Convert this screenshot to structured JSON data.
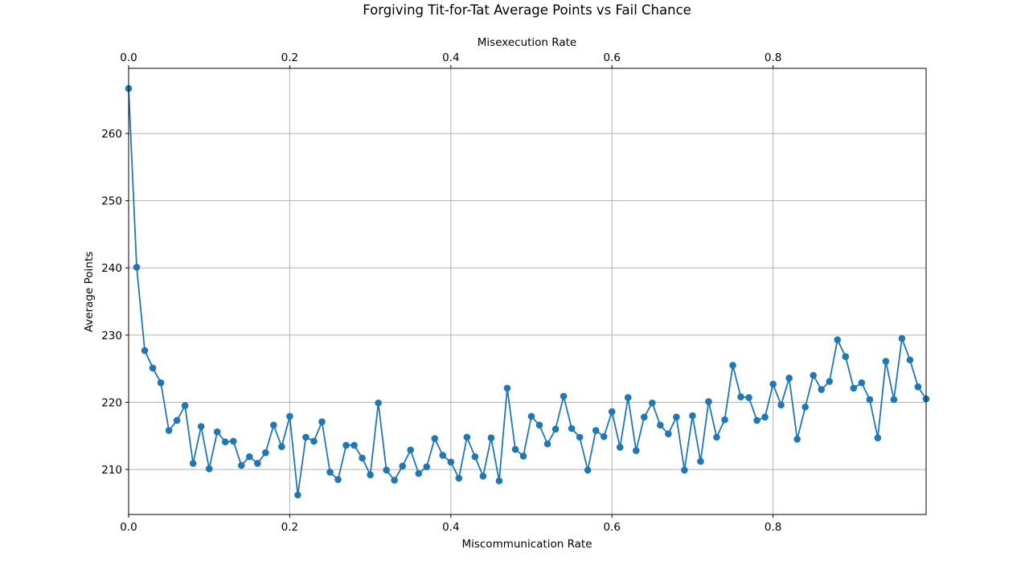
{
  "chart_data": {
    "type": "line",
    "title": "Forgiving Tit-for-Tat Average Points vs Fail Chance",
    "xlabel": "Miscommunication Rate",
    "xlabel_top": "Misexecution Rate",
    "ylabel": "Average Points",
    "xlim": [
      0,
      0.99
    ],
    "ylim": [
      203.3,
      269.7
    ],
    "xticks": [
      "0.0",
      "0.2",
      "0.4",
      "0.6",
      "0.8"
    ],
    "yticks": [
      "210",
      "220",
      "230",
      "240",
      "250",
      "260"
    ],
    "grid": true,
    "markers": true,
    "color": "#1f77b4",
    "series": [
      {
        "x": [
          0.0,
          0.01,
          0.02,
          0.03,
          0.04,
          0.05,
          0.06,
          0.07,
          0.08,
          0.09,
          0.1,
          0.11,
          0.12,
          0.13,
          0.14,
          0.15,
          0.16,
          0.17,
          0.18,
          0.19,
          0.2,
          0.21,
          0.22,
          0.23,
          0.24,
          0.25,
          0.26,
          0.27,
          0.28,
          0.29,
          0.3,
          0.31,
          0.32,
          0.33,
          0.34,
          0.35,
          0.36,
          0.37,
          0.38,
          0.39,
          0.4,
          0.41,
          0.42,
          0.43,
          0.44,
          0.45,
          0.46,
          0.47,
          0.48,
          0.49,
          0.5,
          0.51,
          0.52,
          0.53,
          0.54,
          0.55,
          0.56,
          0.57,
          0.58,
          0.59,
          0.6,
          0.61,
          0.62,
          0.63,
          0.64,
          0.65,
          0.66,
          0.67,
          0.68,
          0.69,
          0.7,
          0.71,
          0.72,
          0.73,
          0.74,
          0.75,
          0.76,
          0.77,
          0.78,
          0.79,
          0.8,
          0.81,
          0.82,
          0.83,
          0.84,
          0.85,
          0.86,
          0.87,
          0.88,
          0.89,
          0.9,
          0.91,
          0.92,
          0.93,
          0.94,
          0.95,
          0.96,
          0.97,
          0.98,
          0.99
        ],
        "values": [
          266.7,
          240.1,
          227.7,
          225.1,
          222.9,
          215.8,
          217.3,
          219.5,
          210.9,
          216.4,
          210.1,
          215.6,
          214.1,
          214.2,
          210.6,
          211.9,
          210.9,
          212.5,
          216.6,
          213.4,
          217.9,
          206.2,
          214.8,
          214.2,
          217.1,
          209.6,
          208.5,
          213.6,
          213.6,
          211.7,
          209.2,
          219.9,
          209.9,
          208.4,
          210.5,
          212.9,
          209.4,
          210.4,
          214.6,
          212.1,
          211.1,
          208.7,
          214.8,
          211.9,
          209.0,
          214.7,
          208.3,
          222.1,
          213.0,
          212.0,
          217.9,
          216.6,
          213.8,
          216.0,
          220.9,
          216.1,
          214.8,
          209.9,
          215.8,
          214.9,
          218.6,
          213.3,
          220.7,
          212.8,
          217.8,
          219.9,
          216.6,
          215.3,
          217.8,
          209.9,
          218.0,
          211.2,
          220.1,
          214.8,
          217.4,
          225.5,
          220.8,
          220.7,
          217.3,
          217.8,
          222.7,
          219.6,
          223.6,
          214.5,
          219.3,
          224.0,
          221.9,
          223.1,
          229.3,
          226.8,
          222.1,
          222.9,
          220.4,
          214.7,
          226.1,
          220.4,
          229.5,
          226.3,
          222.3,
          220.5
        ]
      }
    ]
  }
}
